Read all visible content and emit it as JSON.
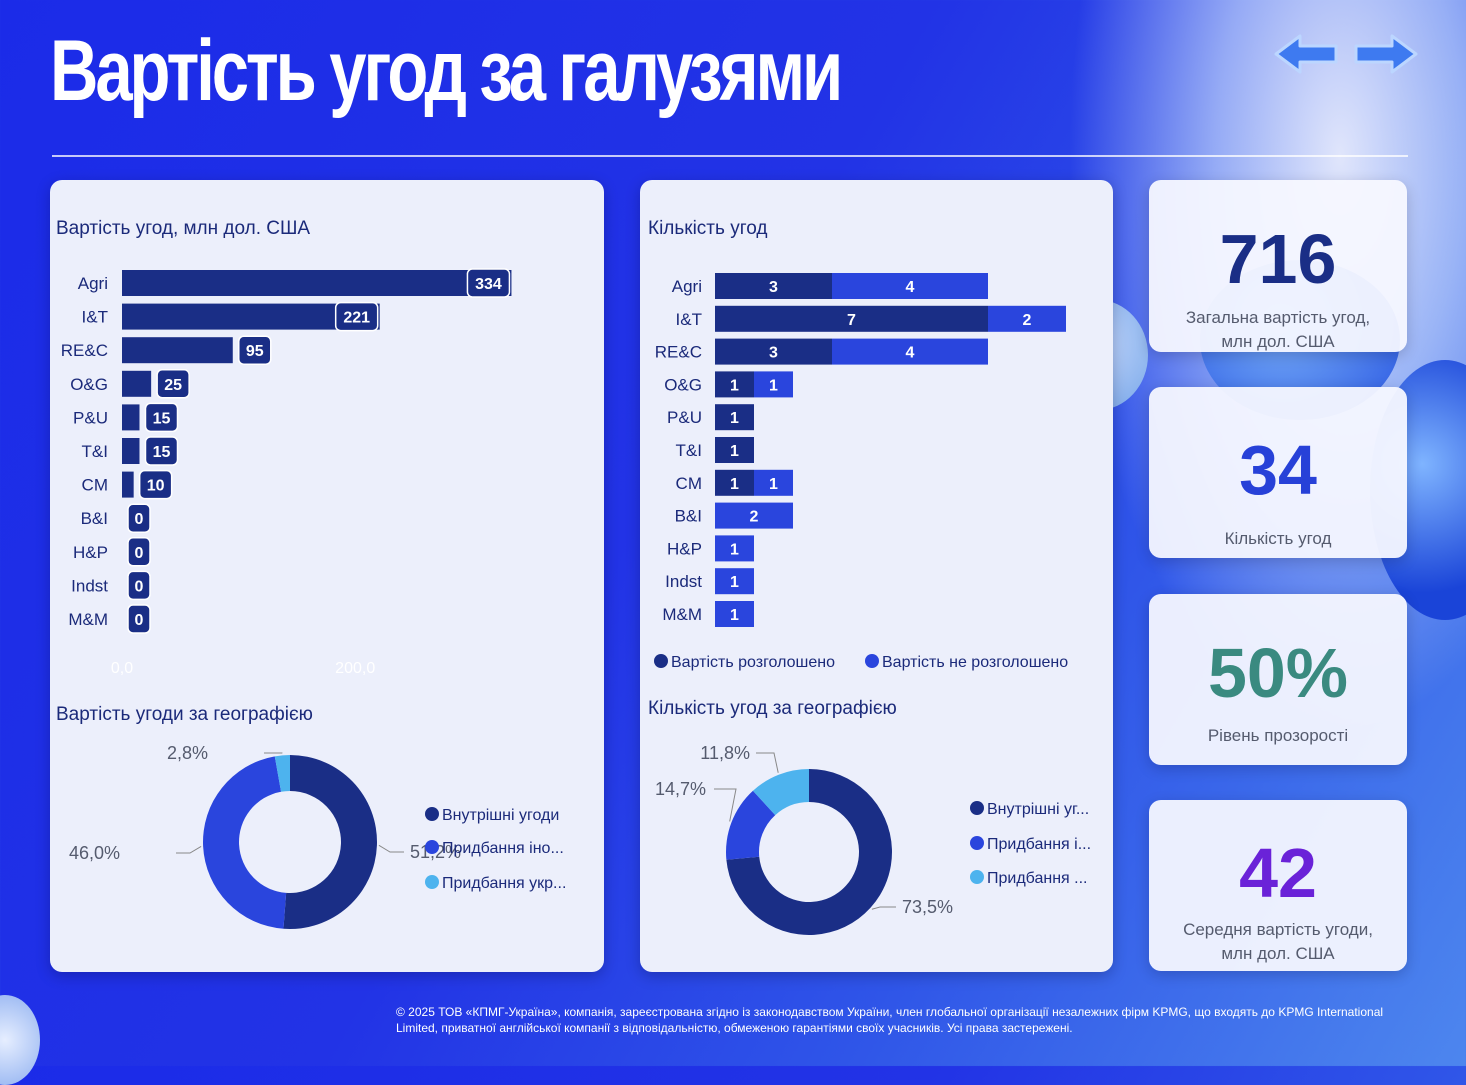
{
  "title": "Вартість угод за галузями",
  "nav": {
    "back_icon": "arrow-left-icon",
    "forward_icon": "arrow-right-icon"
  },
  "colors": {
    "dark": "#1a2e86",
    "mid": "#2a45dd",
    "light": "#4db3ee"
  },
  "value_chart": {
    "title": "Вартість угод, млн дол. США",
    "axis_ticks": [
      "0,0",
      "200,0"
    ]
  },
  "count_chart": {
    "title": "Кількість угод",
    "legend": [
      "Вартість розголошено",
      "Вартість не розголошено"
    ]
  },
  "geo_value": {
    "title": "Вартість угоди за географією",
    "legend": [
      "Внутрішні угоди",
      "Придбання іно...",
      "Придбання укр..."
    ]
  },
  "geo_count": {
    "title": "Кількість угод за географією",
    "legend": [
      "Внутрішні уг...",
      "Придбання і...",
      "Придбання ..."
    ]
  },
  "kpis": [
    {
      "value": "716",
      "label": "Загальна вартість угод, млн дол. США",
      "color": "#1a2e86"
    },
    {
      "value": "34",
      "label": "Кількість угод",
      "color": "#2741d8"
    },
    {
      "value": "50%",
      "label": "Рівень прозорості",
      "color": "#3a8a80"
    },
    {
      "value": "42",
      "label": "Середня вартість угоди, млн дол. США",
      "color": "#6a22d8"
    }
  ],
  "footer": "© 2025 ТОВ «КПМГ-Україна», компанія, зареєстрована згідно із законодавством України, член глобальної організації незалежних фірм KPMG, що входять до KPMG International Limited, приватної англійської компанії з відповідальністю, обмеженою гарантіями своїх учасників. Усі права застережені.",
  "chart_data": [
    {
      "type": "bar",
      "orientation": "horizontal",
      "title": "Вартість угод, млн дол. США",
      "categories": [
        "Agri",
        "I&T",
        "RE&C",
        "O&G",
        "P&U",
        "T&I",
        "CM",
        "B&I",
        "H&P",
        "Indst",
        "M&M"
      ],
      "values": [
        334,
        221,
        95,
        25,
        15,
        15,
        10,
        0,
        0,
        0,
        0
      ],
      "xlim": [
        0,
        380
      ]
    },
    {
      "type": "bar",
      "orientation": "horizontal",
      "stacked": true,
      "title": "Кількість угод",
      "categories": [
        "Agri",
        "I&T",
        "RE&C",
        "O&G",
        "P&U",
        "T&I",
        "CM",
        "B&I",
        "H&P",
        "Indst",
        "M&M"
      ],
      "series": [
        {
          "name": "Вартість розголошено",
          "values": [
            3,
            7,
            3,
            1,
            1,
            1,
            1,
            0,
            0,
            0,
            0
          ]
        },
        {
          "name": "Вартість не розголошено",
          "values": [
            4,
            2,
            4,
            1,
            0,
            0,
            1,
            2,
            1,
            1,
            1
          ]
        }
      ],
      "legend": "bottom"
    },
    {
      "type": "pie",
      "donut": true,
      "title": "Вартість угоди за географією",
      "labels": [
        "Внутрішні угоди",
        "Придбання іно...",
        "Придбання укр..."
      ],
      "values": [
        51.2,
        46.0,
        2.8
      ],
      "value_labels": [
        "51,2%",
        "46,0%",
        "2,8%"
      ]
    },
    {
      "type": "pie",
      "donut": true,
      "title": "Кількість угод за географією",
      "labels": [
        "Внутрішні уг...",
        "Придбання і...",
        "Придбання ..."
      ],
      "values": [
        73.5,
        14.7,
        11.8
      ],
      "value_labels": [
        "73,5%",
        "14,7%",
        "11,8%"
      ]
    }
  ]
}
